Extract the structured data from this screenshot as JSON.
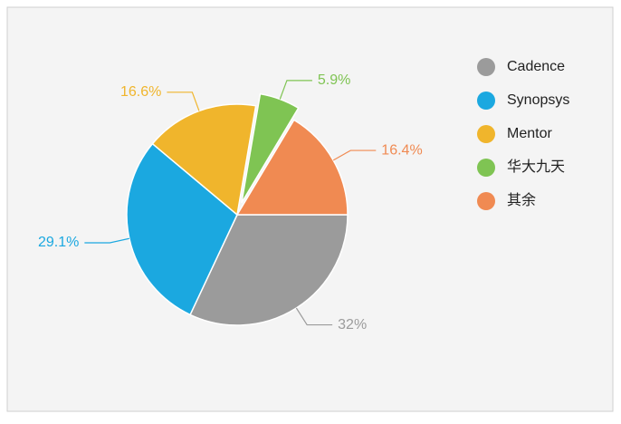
{
  "chart_data": {
    "type": "pie",
    "categories": [
      "Cadence",
      "Synopsys",
      "Mentor",
      "华大九天",
      "其余"
    ],
    "values": [
      32,
      29.1,
      16.6,
      5.9,
      16.4
    ],
    "value_labels": [
      "32%",
      "29.1%",
      "16.6%",
      "5.9%",
      "16.4%"
    ],
    "colors": [
      "#9b9b9b",
      "#1ba8e0",
      "#f0b52c",
      "#7fc453",
      "#f08a52"
    ],
    "exploded": [
      false,
      false,
      false,
      true,
      false
    ],
    "legend": "right"
  }
}
